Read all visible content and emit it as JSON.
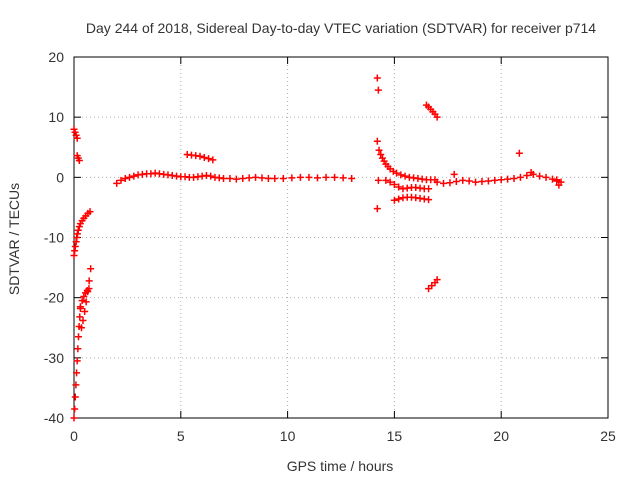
{
  "chart_data": {
    "type": "scatter",
    "title": "Day 244 of 2018, Sidereal Day-to-day VTEC variation (SDTVAR) for receiver p714",
    "xlabel": "GPS time / hours",
    "ylabel": "SDTVAR / TECUs",
    "xlim": [
      0,
      25
    ],
    "ylim": [
      -40,
      20
    ],
    "xticks": [
      0,
      5,
      10,
      15,
      20,
      25
    ],
    "yticks": [
      -40,
      -30,
      -20,
      -10,
      0,
      10,
      20
    ],
    "grid": true,
    "marker": "+",
    "color": "#ff0000",
    "series": [
      {
        "name": "SDTVAR",
        "segments": [
          {
            "x": [
              0.0,
              0.05,
              0.1,
              0.15
            ],
            "y": [
              8.0,
              7.5,
              7.0,
              6.5
            ]
          },
          {
            "x": [
              0.15,
              0.2,
              0.25
            ],
            "y": [
              3.6,
              3.2,
              2.8
            ]
          },
          {
            "x": [
              0.0,
              0.03,
              0.06,
              0.1,
              0.13,
              0.16,
              0.2,
              0.25,
              0.3,
              0.38,
              0.46,
              0.55,
              0.65,
              0.75
            ],
            "y": [
              -13.0,
              -12.2,
              -11.5,
              -10.7,
              -10.0,
              -9.4,
              -8.8,
              -8.2,
              -7.7,
              -7.2,
              -6.8,
              -6.4,
              -6.0,
              -5.7
            ]
          },
          {
            "x": [
              0.0,
              0.03,
              0.06,
              0.09,
              0.12,
              0.15,
              0.18,
              0.21,
              0.24,
              0.27,
              0.3
            ],
            "y": [
              -40.0,
              -38.5,
              -36.5,
              -34.5,
              -32.5,
              -30.5,
              -28.5,
              -26.5,
              -24.8,
              -23.2,
              -21.8
            ]
          },
          {
            "x": [
              0.35,
              0.42,
              0.5,
              0.57,
              0.64,
              0.71,
              0.78
            ],
            "y": [
              -25.0,
              -23.8,
              -22.3,
              -20.7,
              -19.0,
              -17.2,
              -15.2
            ]
          },
          {
            "x": [
              0.3,
              0.38,
              0.46,
              0.54,
              0.62,
              0.7
            ],
            "y": [
              -21.5,
              -20.5,
              -19.8,
              -19.2,
              -18.8,
              -18.5
            ]
          },
          {
            "x": [
              2.0,
              2.2,
              2.4,
              2.6,
              2.8,
              3.0,
              3.2,
              3.4,
              3.6,
              3.8,
              4.0,
              4.2,
              4.4,
              4.6,
              4.8,
              5.0,
              5.2,
              5.4,
              5.6,
              5.8,
              6.0,
              6.2,
              6.4,
              6.6,
              6.8,
              7.0,
              7.3,
              7.6,
              7.9,
              8.2,
              8.5,
              8.8,
              9.1,
              9.4,
              9.8,
              10.2,
              10.6,
              11.0,
              11.4,
              11.8,
              12.2,
              12.6,
              13.0
            ],
            "y": [
              -1.0,
              -0.5,
              -0.2,
              0.0,
              0.2,
              0.4,
              0.5,
              0.6,
              0.6,
              0.7,
              0.6,
              0.5,
              0.4,
              0.3,
              0.2,
              0.1,
              0.1,
              0.0,
              0.0,
              0.1,
              0.2,
              0.3,
              0.2,
              0.0,
              -0.1,
              -0.2,
              -0.2,
              -0.3,
              -0.2,
              -0.1,
              0.0,
              -0.1,
              -0.2,
              -0.2,
              -0.2,
              -0.1,
              0.0,
              0.0,
              -0.1,
              0.0,
              0.0,
              -0.1,
              -0.2
            ]
          },
          {
            "x": [
              5.3,
              5.5,
              5.7,
              5.9,
              6.1,
              6.3,
              6.5
            ],
            "y": [
              3.8,
              3.7,
              3.6,
              3.5,
              3.3,
              3.1,
              2.9
            ]
          },
          {
            "x": [
              14.2,
              14.25
            ],
            "y": [
              16.5,
              14.5
            ]
          },
          {
            "x": [
              14.2,
              14.28,
              14.36,
              14.44,
              14.52,
              14.6,
              14.7,
              14.8,
              14.95,
              15.1,
              15.3,
              15.5,
              15.7,
              15.9,
              16.1,
              16.3,
              16.5,
              16.7,
              16.9
            ],
            "y": [
              6.0,
              4.5,
              3.8,
              3.2,
              2.7,
              2.2,
              1.8,
              1.4,
              1.0,
              0.7,
              0.4,
              0.2,
              0.0,
              -0.1,
              -0.2,
              -0.3,
              -0.4,
              -0.4,
              -0.4
            ]
          },
          {
            "x": [
              14.6,
              14.8,
              15.0,
              15.2,
              15.4,
              15.6,
              15.8,
              16.0,
              16.2,
              16.4,
              16.6
            ],
            "y": [
              -0.5,
              -0.8,
              -1.2,
              -1.6,
              -1.9,
              -1.8,
              -1.7,
              -1.7,
              -1.8,
              -1.9,
              -1.9
            ]
          },
          {
            "x": [
              15.0,
              15.2,
              15.4,
              15.6,
              15.8,
              16.0,
              16.2,
              16.4,
              16.6
            ],
            "y": [
              -3.8,
              -3.6,
              -3.4,
              -3.3,
              -3.3,
              -3.4,
              -3.5,
              -3.6,
              -3.7
            ]
          },
          {
            "x": [
              14.2,
              14.25
            ],
            "y": [
              -5.2,
              -0.5
            ]
          },
          {
            "x": [
              16.5,
              16.6,
              16.7,
              16.8,
              16.9,
              17.0
            ],
            "y": [
              12.0,
              11.7,
              11.3,
              10.9,
              10.5,
              10.0
            ]
          },
          {
            "x": [
              16.6,
              16.75,
              16.9,
              17.0
            ],
            "y": [
              -18.5,
              -18.0,
              -17.5,
              -17.0
            ]
          },
          {
            "x": [
              17.0,
              17.3,
              17.6,
              17.9,
              18.2,
              18.5,
              18.8,
              19.1,
              19.4,
              19.7,
              20.0,
              20.3,
              20.6,
              20.9,
              21.2,
              21.5,
              21.8,
              22.1,
              22.4,
              22.6,
              22.8
            ],
            "y": [
              -0.8,
              -1.0,
              -0.9,
              -0.7,
              -0.5,
              -0.6,
              -0.8,
              -0.7,
              -0.6,
              -0.5,
              -0.4,
              -0.3,
              -0.2,
              0.0,
              0.3,
              0.5,
              0.2,
              0.0,
              -0.3,
              -0.6,
              -0.8
            ]
          },
          {
            "x": [
              17.8,
              20.85,
              21.4,
              22.6,
              22.7
            ],
            "y": [
              0.5,
              4.0,
              0.8,
              -0.4,
              -1.3
            ]
          }
        ]
      }
    ]
  }
}
